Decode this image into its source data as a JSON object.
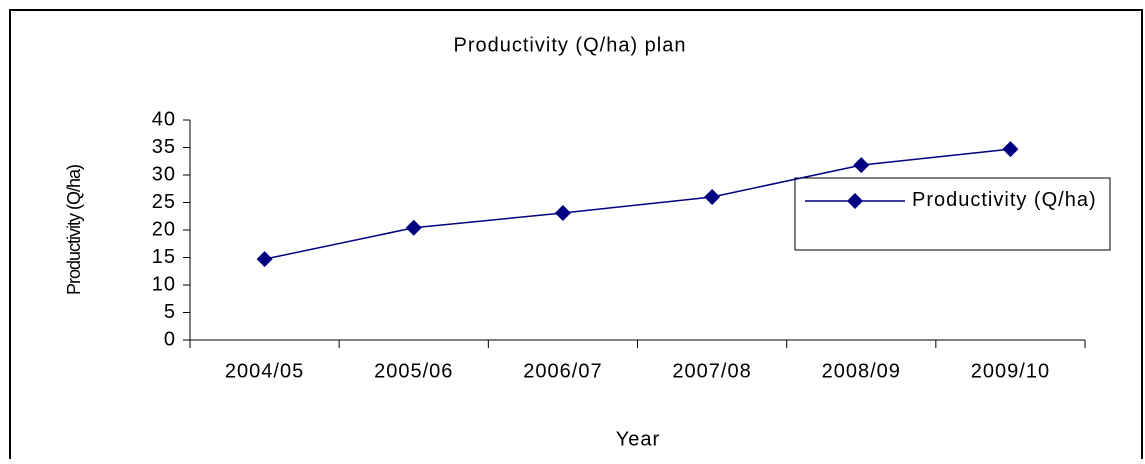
{
  "chart_data": {
    "type": "line",
    "title": "Productivity (Q/ha) plan",
    "x_label": "Year",
    "y_label": "Productivity (Q/ha)",
    "categories": [
      "2004/05",
      "2005/06",
      "2006/07",
      "2007/08",
      "2008/09",
      "2009/10"
    ],
    "series": [
      {
        "name": "Productivity (Q/ha)",
        "color": "#000080",
        "values": [
          14.7,
          20.4,
          23.1,
          26,
          31.8,
          34.7
        ]
      }
    ],
    "ylim": [
      0,
      40
    ],
    "yticks": [
      0,
      5,
      10,
      15,
      20,
      25,
      30,
      35,
      40
    ],
    "grid": false,
    "legend": "right"
  }
}
